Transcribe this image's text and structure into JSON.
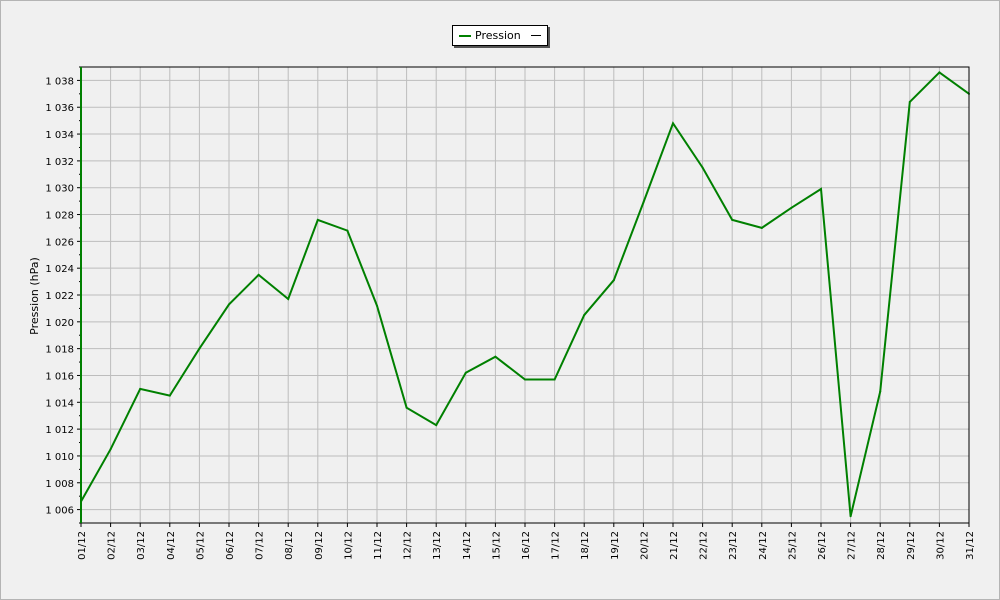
{
  "chart_data": {
    "type": "line",
    "title": "",
    "xlabel": "",
    "ylabel": "Pression (hPa)",
    "ylim": [
      1005,
      1039
    ],
    "y_ticks": [
      1006,
      1008,
      1010,
      1012,
      1014,
      1016,
      1018,
      1020,
      1022,
      1024,
      1026,
      1028,
      1030,
      1032,
      1034,
      1036,
      1038
    ],
    "y_tick_labels": [
      "1 006",
      "1 008",
      "1 010",
      "1 012",
      "1 014",
      "1 016",
      "1 018",
      "1 020",
      "1 022",
      "1 024",
      "1 026",
      "1 028",
      "1 030",
      "1 032",
      "1 034",
      "1 036",
      "1 038"
    ],
    "grid": true,
    "legend_position": "top-center",
    "categories": [
      "01/12",
      "02/12",
      "03/12",
      "04/12",
      "05/12",
      "06/12",
      "07/12",
      "08/12",
      "09/12",
      "10/12",
      "11/12",
      "12/12",
      "13/12",
      "14/12",
      "15/12",
      "16/12",
      "17/12",
      "18/12",
      "19/12",
      "20/12",
      "21/12",
      "22/12",
      "23/12",
      "24/12",
      "25/12",
      "26/12",
      "27/12",
      "28/12",
      "29/12",
      "30/12",
      "31/12"
    ],
    "series": [
      {
        "name": "Pression",
        "color": "#008000",
        "values": [
          1006.6,
          1010.5,
          1015.0,
          1014.5,
          1018.0,
          1021.3,
          1023.5,
          1021.7,
          1027.6,
          1026.8,
          1021.2,
          1013.6,
          1012.3,
          1016.2,
          1017.4,
          1015.7,
          1015.7,
          1020.5,
          1023.1,
          1028.9,
          1034.8,
          1031.5,
          1027.6,
          1027.0,
          1028.5,
          1029.9,
          1005.5,
          1014.8,
          1036.4,
          1038.6,
          1037.0
        ]
      }
    ]
  },
  "legend": {
    "label": "Pression"
  }
}
